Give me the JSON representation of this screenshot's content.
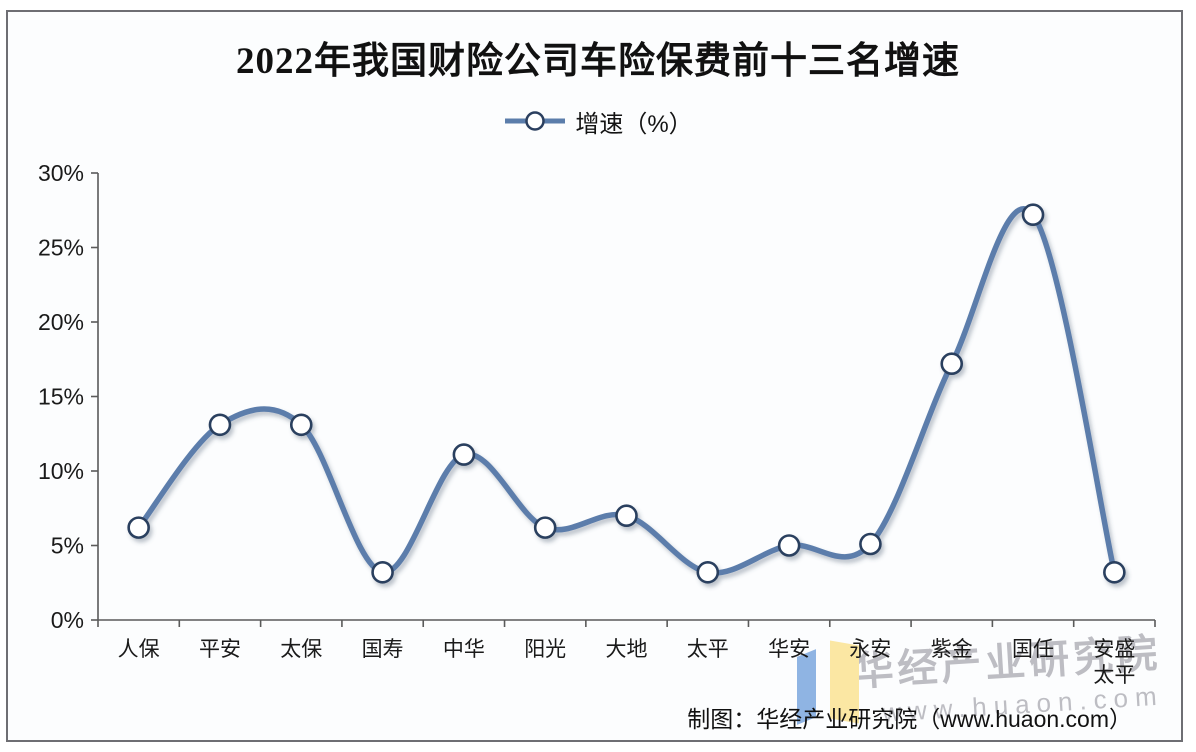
{
  "title": "2022年我国财险公司车险保费前十三名增速",
  "legend": {
    "label": "增速（%）"
  },
  "chart_data": {
    "type": "line",
    "title": "2022年我国财险公司车险保费前十三名增速",
    "series_name": "增速（%）",
    "categories": [
      "人保",
      "平安",
      "太保",
      "国寿",
      "中华",
      "阳光",
      "大地",
      "太平",
      "华安",
      "永安",
      "紫金",
      "国任",
      "安盛太平"
    ],
    "values": [
      6.2,
      13.1,
      13.1,
      3.2,
      11.1,
      6.2,
      7.0,
      3.2,
      5.0,
      5.1,
      17.2,
      27.2,
      3.2
    ],
    "ylim": [
      0,
      30
    ],
    "ytick_values": [
      0,
      5,
      10,
      15,
      20,
      25,
      30
    ],
    "ytick_labels": [
      "0%",
      "5%",
      "10%",
      "15%",
      "20%",
      "25%",
      "30%"
    ],
    "grid": false,
    "legend_position": "top",
    "smooth": true,
    "line_color": "#5b7dab",
    "marker_fill": "#ffffff",
    "marker_stroke": "#2b3f5f",
    "axis_color": "#5a5a5a"
  },
  "attribution": "制图：华经产业研究院（www.huaon.com）",
  "watermark": {
    "line1": "华经产业研究院",
    "line2": "www.huaon.com"
  },
  "logo": {
    "left_color": "#8fb4e3",
    "right_color": "#fbe7a3"
  }
}
